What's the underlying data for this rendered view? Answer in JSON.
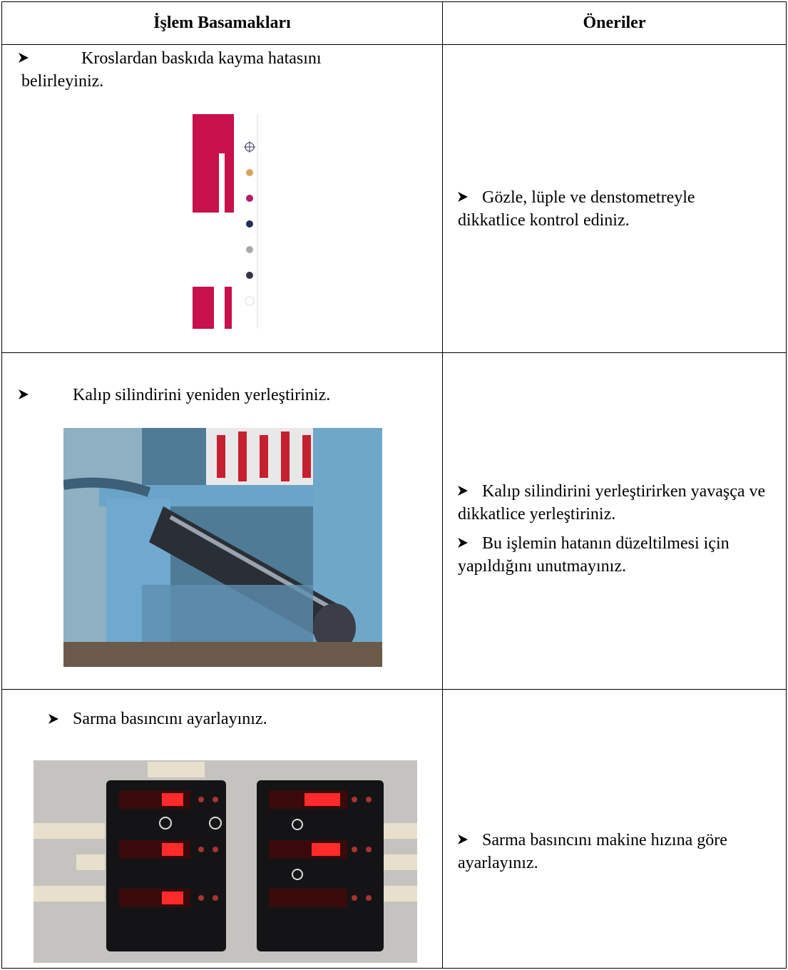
{
  "table": {
    "header": [
      "İşlem Basamakları",
      "Öneriler"
    ],
    "rows": [
      {
        "step": "Kroslardan baskıda kayma hatasını belirleyiniz.",
        "tips": [
          "Gözle, lüple ve denstometreyle dikkatlice kontrol ediniz."
        ]
      },
      {
        "step": "Kalıp silindirini yeniden yerleştiriniz.",
        "tips": [
          "Kalıp silindirini yerleştirirken yavaşça ve dikkatlice yerleştiriniz.",
          "Bu işlemin hatanın düzeltilmesi için yapıldığını unutmayınız."
        ]
      },
      {
        "step": "Sarma basıncını ayarlayınız.",
        "tips": [
          "Sarma basıncını makine hızına göre ayarlayınız."
        ]
      }
    ]
  }
}
